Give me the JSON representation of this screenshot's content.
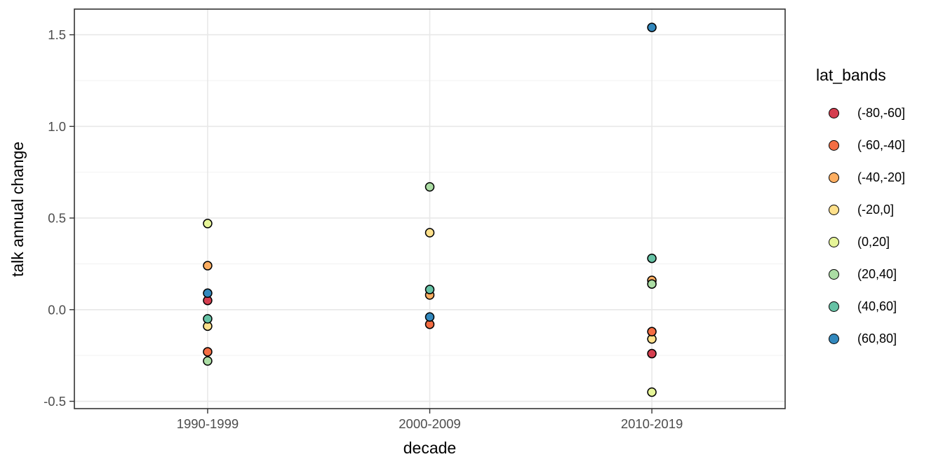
{
  "chart_data": {
    "type": "scatter",
    "title": "",
    "xlabel": "decade",
    "ylabel": "talk annual change",
    "categories": [
      "1990-1999",
      "2000-2009",
      "2010-2019"
    ],
    "y_ticks": [
      -0.5,
      0.0,
      0.5,
      1.0,
      1.5
    ],
    "y_tick_labels": [
      "-0.5",
      "0.0",
      "0.5",
      "1.0",
      "1.5"
    ],
    "y_minor_ticks": [
      -0.25,
      0.25,
      0.75,
      1.25
    ],
    "ylim": [
      -0.54,
      1.64
    ],
    "grid": true,
    "legend_position": "right",
    "legend_title": "lat_bands",
    "bands": [
      {
        "name": "(-80,-60]",
        "color": "#D53E4F"
      },
      {
        "name": "(-60,-40]",
        "color": "#F46D43"
      },
      {
        "name": "(-40,-20]",
        "color": "#FDAE61"
      },
      {
        "name": "(-20,0]",
        "color": "#FEE08B"
      },
      {
        "name": "(0,20]",
        "color": "#E6F598"
      },
      {
        "name": "(20,40]",
        "color": "#ABDDA4"
      },
      {
        "name": "(40,60]",
        "color": "#66C2A5"
      },
      {
        "name": "(60,80]",
        "color": "#3288BD"
      }
    ],
    "series": [
      {
        "name": "(-80,-60]",
        "color": "#D53E4F",
        "values": [
          0.05,
          null,
          -0.24
        ]
      },
      {
        "name": "(-60,-40]",
        "color": "#F46D43",
        "values": [
          -0.23,
          -0.08,
          -0.12
        ]
      },
      {
        "name": "(-40,-20]",
        "color": "#FDAE61",
        "values": [
          0.24,
          0.08,
          0.16
        ]
      },
      {
        "name": "(-20,0]",
        "color": "#FEE08B",
        "values": [
          -0.09,
          0.42,
          -0.16
        ]
      },
      {
        "name": "(0,20]",
        "color": "#E6F598",
        "values": [
          0.47,
          null,
          -0.45
        ]
      },
      {
        "name": "(20,40]",
        "color": "#ABDDA4",
        "values": [
          -0.28,
          0.67,
          0.14
        ]
      },
      {
        "name": "(40,60]",
        "color": "#66C2A5",
        "values": [
          -0.05,
          0.11,
          0.28
        ]
      },
      {
        "name": "(60,80]",
        "color": "#3288BD",
        "values": [
          0.09,
          -0.04,
          1.54
        ]
      }
    ],
    "points": [
      {
        "category": 0,
        "band": "(20,40]",
        "value": -0.28
      },
      {
        "category": 0,
        "band": "(-60,-40]",
        "value": -0.23
      },
      {
        "category": 0,
        "band": "(-20,0]",
        "value": -0.09
      },
      {
        "category": 0,
        "band": "(40,60]",
        "value": -0.05
      },
      {
        "category": 0,
        "band": "(-80,-60]",
        "value": 0.05
      },
      {
        "category": 0,
        "band": "(60,80]",
        "value": 0.09
      },
      {
        "category": 0,
        "band": "(-40,-20]",
        "value": 0.24
      },
      {
        "category": 0,
        "band": "(0,20]",
        "value": 0.47
      },
      {
        "category": 1,
        "band": "(-40,-20]",
        "value": 0.08
      },
      {
        "category": 1,
        "band": "(40,60]",
        "value": 0.11
      },
      {
        "category": 1,
        "band": "(-60,-40]",
        "value": -0.08
      },
      {
        "category": 1,
        "band": "(60,80]",
        "value": -0.04
      },
      {
        "category": 1,
        "band": "(-20,0]",
        "value": 0.42
      },
      {
        "category": 1,
        "band": "(20,40]",
        "value": 0.67
      },
      {
        "category": 2,
        "band": "(-40,-20]",
        "value": 0.16
      },
      {
        "category": 2,
        "band": "(20,40]",
        "value": 0.14
      },
      {
        "category": 2,
        "band": "(-20,0]",
        "value": -0.16
      },
      {
        "category": 2,
        "band": "(-60,-40]",
        "value": -0.12
      },
      {
        "category": 2,
        "band": "(-80,-60]",
        "value": -0.24
      },
      {
        "category": 2,
        "band": "(0,20]",
        "value": -0.45
      },
      {
        "category": 2,
        "band": "(40,60]",
        "value": 0.28
      },
      {
        "category": 2,
        "band": "(60,80]",
        "value": 1.54
      }
    ],
    "style": {
      "panel_border": "#333333",
      "panel_background": "#FFFFFF",
      "grid_major": "#E8E8E8",
      "grid_minor": "#F2F2F2",
      "tick_color": "#333333",
      "tick_label_color": "#4D4D4D",
      "point_stroke": "#000000"
    }
  }
}
